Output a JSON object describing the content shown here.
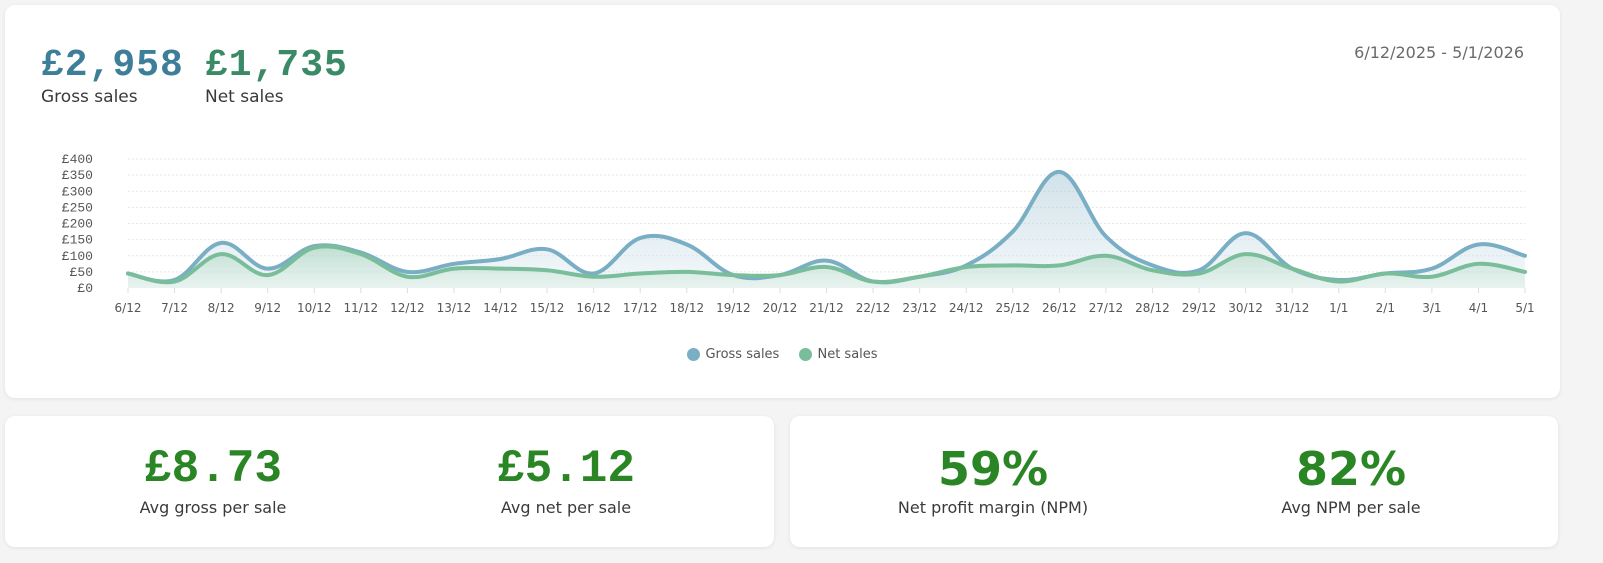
{
  "header": {
    "gross_value": "£2,958",
    "gross_label": "Gross sales",
    "net_value": "£1,735",
    "net_label": "Net sales",
    "date_range": "6/12/2025 - 5/1/2026"
  },
  "colors": {
    "gross": "#7aaec4",
    "gross_text": "#3d7f99",
    "net": "#79bd9a",
    "net_text": "#3a8a66",
    "kpi_green": "#2a8524",
    "grid": "#e6e6e6"
  },
  "legend": [
    {
      "label": "Gross sales",
      "color": "#7aaec4"
    },
    {
      "label": "Net sales",
      "color": "#79bd9a"
    }
  ],
  "chart_data": {
    "type": "area",
    "title": "",
    "xlabel": "",
    "ylabel": "",
    "ylim": [
      0,
      400
    ],
    "yticks": [
      "£0",
      "£50",
      "£100",
      "£150",
      "£200",
      "£250",
      "£300",
      "£350",
      "£400"
    ],
    "grid": true,
    "legend_position": "bottom",
    "categories": [
      "6/12",
      "7/12",
      "8/12",
      "9/12",
      "10/12",
      "11/12",
      "12/12",
      "13/12",
      "14/12",
      "15/12",
      "16/12",
      "17/12",
      "18/12",
      "19/12",
      "20/12",
      "21/12",
      "22/12",
      "23/12",
      "24/12",
      "25/12",
      "26/12",
      "27/12",
      "28/12",
      "29/12",
      "30/12",
      "31/12",
      "1/1",
      "2/1",
      "3/1",
      "4/1",
      "5/1"
    ],
    "series": [
      {
        "name": "Gross sales",
        "values": [
          45,
          25,
          140,
          60,
          130,
          110,
          50,
          75,
          90,
          120,
          45,
          155,
          135,
          40,
          40,
          85,
          20,
          35,
          70,
          175,
          360,
          160,
          70,
          55,
          170,
          60,
          25,
          45,
          60,
          135,
          100
        ]
      },
      {
        "name": "Net sales",
        "values": [
          45,
          20,
          105,
          40,
          125,
          105,
          35,
          60,
          60,
          55,
          35,
          45,
          50,
          40,
          40,
          65,
          20,
          35,
          65,
          70,
          70,
          100,
          55,
          45,
          105,
          60,
          20,
          45,
          35,
          75,
          50
        ]
      }
    ]
  },
  "kpis_left": [
    {
      "value": "£8.73",
      "label": "Avg gross per sale"
    },
    {
      "value": "£5.12",
      "label": "Avg net per sale"
    }
  ],
  "kpis_right": [
    {
      "value": "59%",
      "label": "Net profit margin (NPM)"
    },
    {
      "value": "82%",
      "label": "Avg NPM per sale"
    }
  ]
}
